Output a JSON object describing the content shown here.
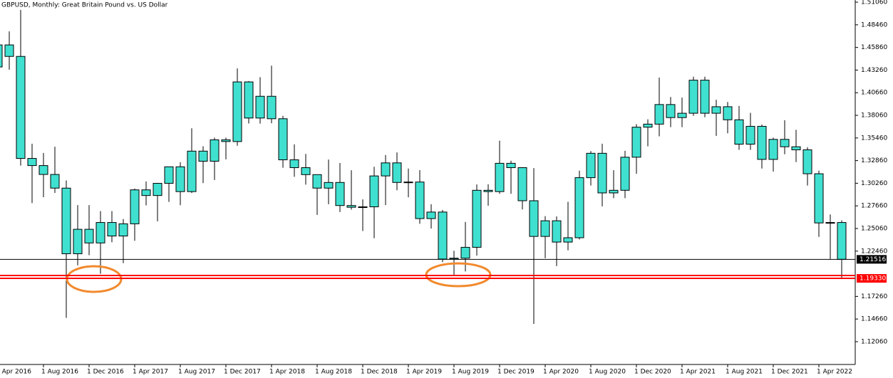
{
  "chart_data": {
    "type": "candlestick",
    "title": "GBPUSD, Monthly:  Great Britain Pound vs. US Dollar",
    "categories": [
      "1 Apr 2016",
      null,
      null,
      null,
      "1 Aug 2016",
      null,
      null,
      null,
      "1 Dec 2016",
      null,
      null,
      null,
      "1 Apr 2017",
      null,
      null,
      null,
      "1 Aug 2017",
      null,
      null,
      null,
      "1 Dec 2017",
      null,
      null,
      null,
      "1 Apr 2018",
      null,
      null,
      null,
      "1 Aug 2018",
      null,
      null,
      null,
      "1 Dec 2018",
      null,
      null,
      null,
      "1 Apr 2019",
      null,
      null,
      null,
      "1 Aug 2019",
      null,
      null,
      null,
      "1 Dec 2019",
      null,
      null,
      null,
      "1 Apr 2020",
      null,
      null,
      null,
      "1 Aug 2020",
      null,
      null,
      null,
      "1 Dec 2020",
      null,
      null,
      null,
      "1 Apr 2021",
      null,
      null,
      null,
      "1 Aug 2021",
      null,
      null,
      null,
      "1 Dec 2021",
      null,
      null,
      null,
      "1 Apr 2022",
      null,
      null
    ],
    "open": [
      1.4362,
      1.4615,
      1.4483,
      1.3311,
      1.3229,
      1.3127,
      1.297,
      1.2216,
      1.2497,
      1.234,
      1.2575,
      1.242,
      1.256,
      1.295,
      1.2885,
      1.3025,
      1.3215,
      1.293,
      1.3395,
      1.3279,
      1.3525,
      1.3505,
      1.419,
      1.3775,
      1.4025,
      1.3767,
      1.3295,
      1.3205,
      1.3125,
      1.297,
      1.3035,
      1.277,
      1.275,
      1.2755,
      1.311,
      1.326,
      1.3035,
      1.304,
      1.262,
      1.2695,
      1.2155,
      1.2165,
      1.229,
      1.2945,
      1.293,
      1.3255,
      1.3205,
      1.2825,
      1.2415,
      1.2595,
      1.235,
      1.24,
      1.309,
      1.337,
      1.2915,
      1.2945,
      1.3325,
      1.367,
      1.3705,
      1.393,
      1.378,
      1.383,
      1.421,
      1.383,
      1.3905,
      1.3755,
      1.3475,
      1.368,
      1.33,
      1.353,
      1.3445,
      1.341,
      1.3135,
      1.257,
      1.2575
    ],
    "high": [
      1.477,
      1.477,
      1.5018,
      1.348,
      1.3374,
      1.3445,
      1.3058,
      1.2775,
      1.2775,
      1.2706,
      1.2706,
      1.2615,
      1.2965,
      1.3047,
      1.303,
      1.3212,
      1.3267,
      1.3657,
      1.345,
      1.355,
      1.355,
      1.4345,
      1.42,
      1.4245,
      1.4377,
      1.38,
      1.3473,
      1.3363,
      1.3125,
      1.3298,
      1.3258,
      1.3175,
      1.284,
      1.3215,
      1.335,
      1.338,
      1.3195,
      1.3177,
      1.2785,
      1.272,
      1.225,
      1.2582,
      1.3012,
      1.3014,
      1.3515,
      1.3285,
      1.321,
      1.32,
      1.2648,
      1.2645,
      1.2813,
      1.317,
      1.3395,
      1.348,
      1.3175,
      1.3398,
      1.3705,
      1.376,
      1.424,
      1.4017,
      1.401,
      1.425,
      1.425,
      1.3985,
      1.396,
      1.3915,
      1.3835,
      1.37,
      1.355,
      1.375,
      1.364,
      1.344,
      1.317,
      1.2667,
      1.26
    ],
    "low": [
      1.4006,
      1.4331,
      1.3229,
      1.2798,
      1.2866,
      1.2915,
      1.148,
      1.2083,
      1.2199,
      1.1986,
      1.2347,
      1.2108,
      1.2365,
      1.2772,
      1.2589,
      1.2812,
      1.2774,
      1.2914,
      1.3027,
      1.3063,
      1.33,
      1.3457,
      1.3712,
      1.3711,
      1.3715,
      1.3204,
      1.31,
      1.301,
      1.2662,
      1.2785,
      1.2695,
      1.2723,
      1.2477,
      1.2395,
      1.2775,
      1.2945,
      1.2865,
      1.256,
      1.2506,
      1.212,
      1.1958,
      1.2013,
      1.2195,
      1.2768,
      1.2905,
      1.2905,
      1.2725,
      1.141,
      1.2165,
      1.2075,
      1.2255,
      1.238,
      1.3,
      1.276,
      1.2855,
      1.2855,
      1.3135,
      1.345,
      1.3565,
      1.367,
      1.367,
      1.38,
      1.3785,
      1.357,
      1.36,
      1.341,
      1.341,
      1.3195,
      1.316,
      1.336,
      1.327,
      1.3,
      1.241,
      1.2155,
      1.1933
    ],
    "close": [
      1.4615,
      1.4483,
      1.3311,
      1.3229,
      1.3127,
      1.297,
      1.2216,
      1.2497,
      1.234,
      1.2575,
      1.242,
      1.256,
      1.295,
      1.2885,
      1.3025,
      1.3215,
      1.293,
      1.3395,
      1.3279,
      1.3525,
      1.3505,
      1.419,
      1.3775,
      1.4025,
      1.3767,
      1.3295,
      1.3205,
      1.3125,
      1.297,
      1.3035,
      1.277,
      1.275,
      1.2755,
      1.311,
      1.326,
      1.3035,
      1.304,
      1.262,
      1.2695,
      1.2155,
      1.2165,
      1.229,
      1.2945,
      1.293,
      1.3255,
      1.3205,
      1.2825,
      1.2415,
      1.2595,
      1.235,
      1.24,
      1.309,
      1.337,
      1.2915,
      1.2945,
      1.3325,
      1.367,
      1.3705,
      1.393,
      1.378,
      1.383,
      1.421,
      1.383,
      1.3905,
      1.3755,
      1.3475,
      1.368,
      1.33,
      1.353,
      1.3445,
      1.341,
      1.3135,
      1.257,
      1.2575,
      1.2152
    ],
    "color": "#40e0d0",
    "ylim": [
      1.0944,
      1.5131
    ],
    "yticks": [
      {
        "value": 1.5106,
        "label": "1.51060"
      },
      {
        "value": 1.4846,
        "label": "1.48460"
      },
      {
        "value": 1.4586,
        "label": "1.45860"
      },
      {
        "value": 1.4326,
        "label": "1.43260"
      },
      {
        "value": 1.4066,
        "label": "1.40660"
      },
      {
        "value": 1.3806,
        "label": "1.38060"
      },
      {
        "value": 1.3546,
        "label": "1.35460"
      },
      {
        "value": 1.3286,
        "label": "1.32860"
      },
      {
        "value": 1.3026,
        "label": "1.30260"
      },
      {
        "value": 1.2766,
        "label": "1.27660"
      },
      {
        "value": 1.2506,
        "label": "1.25060"
      },
      {
        "value": 1.2246,
        "label": "1.22460"
      },
      {
        "value": 1.1726,
        "label": "1.17260"
      },
      {
        "value": 1.1466,
        "label": "1.14660"
      },
      {
        "value": 1.1206,
        "label": "1.12060"
      }
    ],
    "hlines": [
      {
        "value": 1.21516,
        "label": "1.21516",
        "color": "#000000"
      },
      {
        "value": 1.1966,
        "color": "#ff0000"
      },
      {
        "value": 1.1933,
        "label": "1.19330",
        "color": "#ff0000"
      }
    ]
  }
}
